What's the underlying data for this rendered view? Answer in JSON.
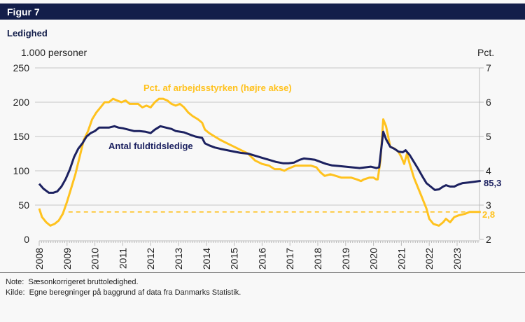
{
  "figure": {
    "label": "Figur 7",
    "title": "Ledighed",
    "note_prefix": "Note:",
    "note": "Sæsonkorrigeret bruttoledighed.",
    "source_prefix": "Kilde:",
    "source": "Egne beregninger på baggrund af data fra Danmarks Statistik."
  },
  "chart_data": {
    "type": "line",
    "title": "Ledighed",
    "xlabel": "",
    "ylabel_left": "1.000 personer",
    "ylabel_right": "Pct.",
    "xlim": [
      2008,
      2023.85
    ],
    "ylim_left": [
      0,
      250
    ],
    "ylim_right": [
      2,
      7
    ],
    "left_ticks": [
      "0",
      "50",
      "100",
      "150",
      "200",
      "250"
    ],
    "right_ticks": [
      "2",
      "3",
      "4",
      "5",
      "6",
      "7"
    ],
    "x_ticks": [
      "2008",
      "2009",
      "2010",
      "2011",
      "2012",
      "2013",
      "2014",
      "2015",
      "2016",
      "2017",
      "2018",
      "2019",
      "2020",
      "2021",
      "2022",
      "2023"
    ],
    "grid": true,
    "series": [
      {
        "name": "Antal fuldtidsledige",
        "axis": "left",
        "color": "#1c2160",
        "end_label": "85,3",
        "x": [
          2008.0,
          2008.15,
          2008.35,
          2008.5,
          2008.65,
          2008.8,
          2008.95,
          2009.1,
          2009.25,
          2009.4,
          2009.55,
          2009.7,
          2009.85,
          2010.0,
          2010.15,
          2010.3,
          2010.5,
          2010.7,
          2010.85,
          2011.0,
          2011.2,
          2011.4,
          2011.6,
          2011.8,
          2012.0,
          2012.15,
          2012.35,
          2012.55,
          2012.75,
          2012.9,
          2013.05,
          2013.2,
          2013.4,
          2013.6,
          2013.85,
          2013.95,
          2014.1,
          2014.3,
          2014.5,
          2014.75,
          2015.0,
          2015.25,
          2015.5,
          2015.75,
          2016.0,
          2016.25,
          2016.5,
          2016.75,
          2016.95,
          2017.15,
          2017.35,
          2017.5,
          2017.7,
          2017.9,
          2018.1,
          2018.3,
          2018.5,
          2018.75,
          2019.0,
          2019.25,
          2019.5,
          2019.7,
          2019.9,
          2020.1,
          2020.2,
          2020.35,
          2020.45,
          2020.6,
          2020.75,
          2020.9,
          2021.05,
          2021.15,
          2021.3,
          2021.45,
          2021.6,
          2021.75,
          2021.9,
          2022.05,
          2022.2,
          2022.35,
          2022.5,
          2022.6,
          2022.75,
          2022.9,
          2023.05,
          2023.2,
          2023.4,
          2023.6,
          2023.85
        ],
        "values": [
          81,
          74,
          68,
          68,
          70,
          77,
          88,
          102,
          120,
          132,
          140,
          150,
          155,
          158,
          163,
          163,
          163,
          165,
          163,
          162,
          160,
          158,
          158,
          157,
          155,
          160,
          165,
          163,
          161,
          158,
          157,
          156,
          153,
          150,
          148,
          140,
          137,
          134,
          132,
          130,
          128,
          126,
          125,
          122,
          119,
          116,
          113,
          111,
          111,
          112,
          116,
          118,
          117,
          116,
          113,
          110,
          108,
          107,
          106,
          105,
          104,
          105,
          106,
          104,
          105,
          157,
          146,
          135,
          132,
          128,
          127,
          130,
          123,
          113,
          103,
          92,
          82,
          77,
          72,
          73,
          77,
          79,
          77,
          77,
          80,
          82,
          83,
          84,
          85.3
        ]
      },
      {
        "name": "Pct. af arbejdsstyrken (højre akse)",
        "axis": "right",
        "color": "#ffc21e",
        "end_label": "2,8",
        "x": [
          2008.0,
          2008.1,
          2008.25,
          2008.4,
          2008.55,
          2008.7,
          2008.85,
          2009.0,
          2009.15,
          2009.3,
          2009.45,
          2009.6,
          2009.75,
          2009.9,
          2010.05,
          2010.2,
          2010.35,
          2010.5,
          2010.65,
          2010.8,
          2010.95,
          2011.1,
          2011.25,
          2011.4,
          2011.55,
          2011.7,
          2011.85,
          2012.0,
          2012.15,
          2012.3,
          2012.45,
          2012.6,
          2012.75,
          2012.9,
          2013.05,
          2013.2,
          2013.35,
          2013.5,
          2013.7,
          2013.85,
          2013.95,
          2014.1,
          2014.3,
          2014.5,
          2014.75,
          2015.0,
          2015.25,
          2015.5,
          2015.75,
          2016.0,
          2016.25,
          2016.45,
          2016.65,
          2016.8,
          2016.9,
          2017.05,
          2017.2,
          2017.4,
          2017.55,
          2017.75,
          2017.95,
          2018.1,
          2018.25,
          2018.45,
          2018.65,
          2018.85,
          2019.0,
          2019.2,
          2019.4,
          2019.55,
          2019.65,
          2019.85,
          2020.0,
          2020.1,
          2020.15,
          2020.25,
          2020.35,
          2020.45,
          2020.6,
          2020.75,
          2020.9,
          2021.0,
          2021.1,
          2021.2,
          2021.3,
          2021.45,
          2021.6,
          2021.75,
          2021.9,
          2022.0,
          2022.15,
          2022.35,
          2022.5,
          2022.6,
          2022.75,
          2022.9,
          2023.05,
          2023.3,
          2023.45,
          2023.85
        ],
        "values": [
          2.9,
          2.65,
          2.5,
          2.4,
          2.45,
          2.55,
          2.75,
          3.1,
          3.5,
          3.9,
          4.4,
          4.9,
          5.15,
          5.5,
          5.7,
          5.85,
          6.0,
          6.0,
          6.1,
          6.05,
          6.0,
          6.05,
          5.95,
          5.95,
          5.95,
          5.85,
          5.9,
          5.85,
          6.0,
          6.1,
          6.1,
          6.05,
          5.95,
          5.9,
          5.95,
          5.85,
          5.7,
          5.6,
          5.5,
          5.4,
          5.2,
          5.1,
          5.0,
          4.9,
          4.8,
          4.7,
          4.6,
          4.5,
          4.3,
          4.2,
          4.15,
          4.05,
          4.05,
          4.0,
          4.05,
          4.1,
          4.15,
          4.15,
          4.15,
          4.15,
          4.1,
          3.95,
          3.85,
          3.9,
          3.85,
          3.8,
          3.8,
          3.8,
          3.75,
          3.7,
          3.75,
          3.8,
          3.8,
          3.75,
          3.75,
          4.3,
          5.5,
          5.3,
          4.7,
          4.65,
          4.55,
          4.4,
          4.2,
          4.5,
          4.2,
          3.8,
          3.5,
          3.2,
          2.9,
          2.6,
          2.45,
          2.4,
          2.5,
          2.6,
          2.5,
          2.65,
          2.7,
          2.75,
          2.8,
          2.8
        ]
      }
    ],
    "reference_lines": [
      {
        "axis": "right",
        "value": 2.8,
        "style": "dashed",
        "color": "#ffc21e"
      }
    ]
  }
}
